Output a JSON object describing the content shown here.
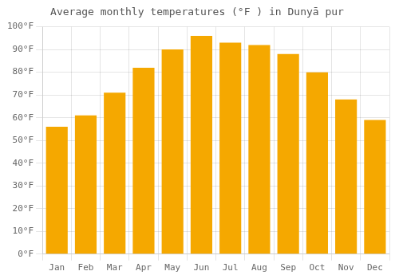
{
  "chart_data": {
    "type": "bar",
    "title": "Average monthly temperatures (°F ) in Dunyā pur",
    "categories": [
      "Jan",
      "Feb",
      "Mar",
      "Apr",
      "May",
      "Jun",
      "Jul",
      "Aug",
      "Sep",
      "Oct",
      "Nov",
      "Dec"
    ],
    "values": [
      56,
      61,
      71,
      82,
      90,
      96,
      93,
      92,
      88,
      80,
      68,
      59
    ],
    "color": "#F5A800",
    "ylim": [
      0,
      100
    ],
    "yticks": [
      {
        "value": 0,
        "label": "0°F"
      },
      {
        "value": 10,
        "label": "10°F"
      },
      {
        "value": 20,
        "label": "20°F"
      },
      {
        "value": 30,
        "label": "30°F"
      },
      {
        "value": 40,
        "label": "40°F"
      },
      {
        "value": 50,
        "label": "50°F"
      },
      {
        "value": 60,
        "label": "60°F"
      },
      {
        "value": 70,
        "label": "70°F"
      },
      {
        "value": 80,
        "label": "80°F"
      },
      {
        "value": 90,
        "label": "90°F"
      },
      {
        "value": 100,
        "label": "100°F"
      }
    ],
    "grid": true
  }
}
